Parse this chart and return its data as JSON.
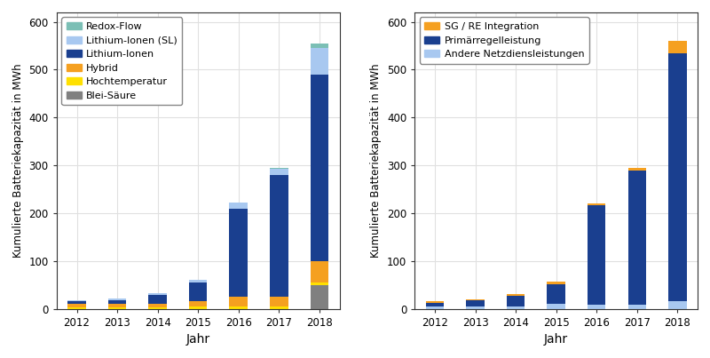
{
  "years": [
    "2012",
    "2013",
    "2014",
    "2015",
    "2016",
    "2017",
    "2018"
  ],
  "left": {
    "blei_saure": [
      0,
      0,
      0,
      0,
      0,
      0,
      50
    ],
    "hochtemperatur": [
      2,
      2,
      3,
      5,
      5,
      5,
      5
    ],
    "hybrid": [
      8,
      8,
      8,
      10,
      20,
      20,
      45
    ],
    "lithium_ionen": [
      5,
      8,
      17,
      40,
      185,
      255,
      390
    ],
    "lithium_ionen_sl": [
      2,
      3,
      4,
      5,
      12,
      13,
      55
    ],
    "redox_flow": [
      0,
      0,
      0,
      0,
      0,
      2,
      10
    ],
    "colors": {
      "blei_saure": "#808080",
      "hochtemperatur": "#FFE000",
      "hybrid": "#F5A020",
      "lithium_ionen": "#1A3F8F",
      "lithium_ionen_sl": "#A8C8F0",
      "redox_flow": "#7BBFB5"
    },
    "labels": {
      "redox_flow": "Redox-Flow",
      "lithium_ionen_sl": "Lithium-Ionen (SL)",
      "lithium_ionen": "Lithium-Ionen",
      "hybrid": "Hybrid",
      "hochtemperatur": "Hochtemperatur",
      "blei_saure": "Blei-Säure"
    }
  },
  "right": {
    "andere_netz": [
      5,
      5,
      5,
      10,
      8,
      8,
      15
    ],
    "primaer": [
      8,
      12,
      22,
      42,
      208,
      281,
      520
    ],
    "sg_re": [
      2,
      2,
      3,
      5,
      5,
      5,
      25
    ],
    "colors": {
      "andere_netz": "#A8C8F0",
      "primaer": "#1A3F8F",
      "sg_re": "#F5A020"
    },
    "labels": {
      "sg_re": "SG / RE Integration",
      "primaer": "Primärregelleistung",
      "andere_netz": "Andere Netzdiensleistungen"
    }
  },
  "ylabel": "Kumulierte Batteriekapazität in MWh",
  "xlabel": "Jahr",
  "ylim": [
    0,
    620
  ],
  "yticks": [
    0,
    100,
    200,
    300,
    400,
    500,
    600
  ],
  "bg_color": "#FFFFFF",
  "grid_color": "#E0E0E0",
  "bar_width": 0.45
}
